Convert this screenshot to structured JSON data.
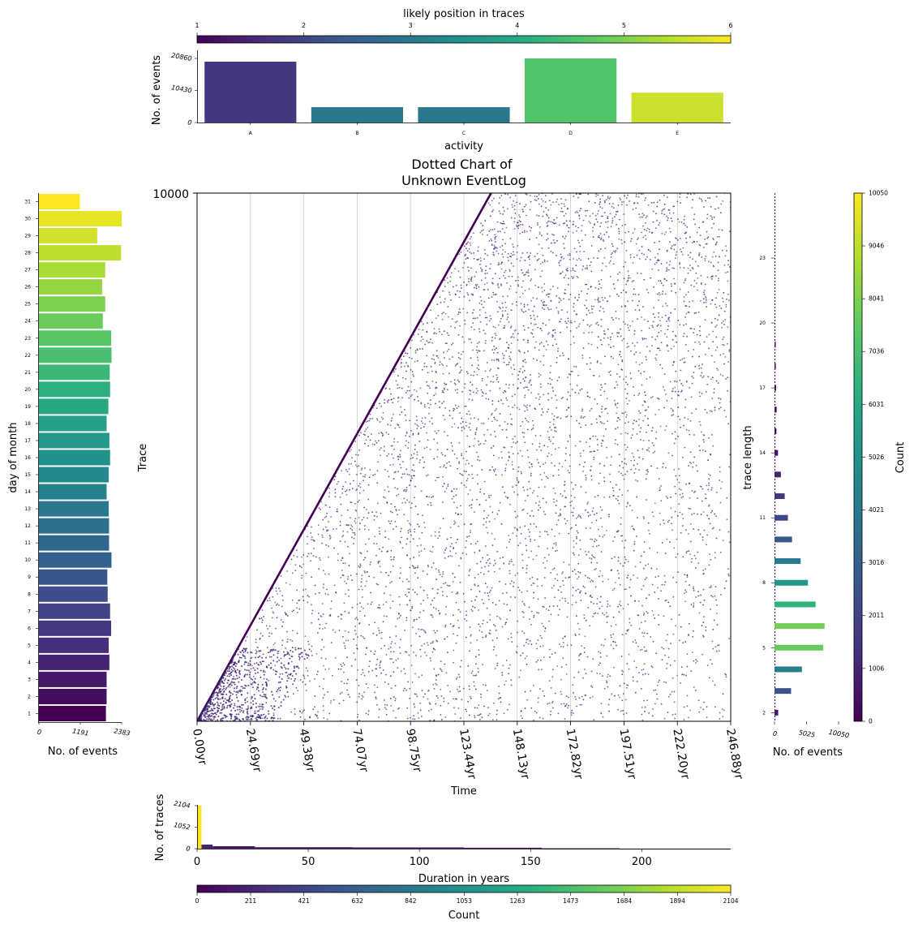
{
  "chart_data": [
    {
      "id": "activity-bars",
      "type": "bar",
      "categories": [
        "A",
        "B",
        "C",
        "D",
        "E"
      ],
      "values": [
        19800,
        5000,
        5000,
        20860,
        9700
      ],
      "ylim": [
        0,
        20860
      ],
      "yticks": [
        {
          "v": 0,
          "label": "0"
        },
        {
          "v": 10430,
          "label": "10430"
        },
        {
          "v": 20860,
          "label": "20860"
        }
      ],
      "xlabel": "activity",
      "ylabel": "No. of events",
      "likely_position": [
        1.8,
        3.0,
        3.0,
        4.6,
        5.6
      ],
      "colorbar": {
        "label": "likely position in traces",
        "range": [
          1,
          6
        ],
        "ticks": [
          "1",
          "2",
          "3",
          "4",
          "5",
          "6"
        ]
      }
    },
    {
      "id": "day-of-month",
      "type": "bar",
      "orientation": "horizontal",
      "categories": [
        "1",
        "2",
        "3",
        "4",
        "5",
        "6",
        "7",
        "8",
        "9",
        "10",
        "11",
        "12",
        "13",
        "14",
        "15",
        "16",
        "17",
        "18",
        "19",
        "20",
        "21",
        "22",
        "23",
        "24",
        "25",
        "26",
        "27",
        "28",
        "29",
        "30",
        "31"
      ],
      "values": [
        1930,
        1950,
        1950,
        2030,
        2010,
        2080,
        2050,
        1980,
        1970,
        2090,
        2020,
        2020,
        2010,
        1950,
        2010,
        2050,
        2030,
        1950,
        2000,
        2050,
        2040,
        2090,
        2080,
        1840,
        1910,
        1820,
        1910,
        2365,
        1680,
        2383,
        1180
      ],
      "xlim": [
        0,
        2383
      ],
      "xticks": [
        {
          "v": 0,
          "label": "0"
        },
        {
          "v": 1191,
          "label": "1191"
        },
        {
          "v": 2383,
          "label": "2383"
        }
      ],
      "xlabel": "No. of events",
      "ylabel": "day of month",
      "colormap": "viridis"
    },
    {
      "id": "dotted-chart",
      "type": "scatter",
      "title": "Dotted Chart of\nUnknown EventLog",
      "xlabel": "Time",
      "ylabel": "Trace",
      "xlim": [
        0,
        246.88
      ],
      "ylim": [
        0,
        10000
      ],
      "xticks": [
        "0.00yr",
        "24.69yr",
        "49.38yr",
        "74.07yr",
        "98.75yr",
        "123.44yr",
        "148.13yr",
        "172.82yr",
        "197.51yr",
        "222.20yr",
        "246.88yr"
      ],
      "yticks": [
        "10000"
      ],
      "description_points": "case start times rise linearly from 0yr at trace 0 to about 136yr at trace 10000; later events scatter to the right of the start diagonal",
      "start_line": [
        [
          0,
          0
        ],
        [
          136,
          10000
        ]
      ],
      "grid": "vertical"
    },
    {
      "id": "trace-length",
      "type": "bar",
      "orientation": "horizontal",
      "lengths": [
        2,
        3,
        4,
        5,
        6,
        7,
        8,
        9,
        10,
        11,
        12,
        13,
        14,
        15,
        16,
        17,
        18,
        19,
        20,
        21,
        22,
        23,
        24
      ],
      "values": [
        580,
        2600,
        4300,
        7650,
        7850,
        6450,
        5250,
        4100,
        2750,
        2100,
        1600,
        1000,
        550,
        300,
        330,
        250,
        200,
        150,
        0,
        0,
        0,
        0,
        0
      ],
      "xlim": [
        0,
        10050
      ],
      "xticks": [
        {
          "v": 0,
          "label": "0"
        },
        {
          "v": 5025,
          "label": "5025"
        },
        {
          "v": 10050,
          "label": "10050"
        }
      ],
      "yticks": [
        "2",
        "5",
        "8",
        "11",
        "14",
        "17",
        "20",
        "23"
      ],
      "ylim": [
        1.6,
        26
      ],
      "xlabel": "No. of events",
      "ylabel": "trace length",
      "colorbar": {
        "label": "Count",
        "range": [
          0,
          10050
        ],
        "ticks": [
          "0",
          "1006",
          "2011",
          "3016",
          "4021",
          "5026",
          "6031",
          "7036",
          "8041",
          "9046",
          "10050"
        ]
      }
    },
    {
      "id": "duration-histogram",
      "type": "bar",
      "x_label": "Duration in years",
      "ylabel": "No. of traces",
      "xlim": [
        0,
        240
      ],
      "ylim": [
        0,
        2104
      ],
      "xticks": [
        {
          "v": 0,
          "label": "0"
        },
        {
          "v": 50,
          "label": "50"
        },
        {
          "v": 100,
          "label": "100"
        },
        {
          "v": 150,
          "label": "150"
        },
        {
          "v": 200,
          "label": "200"
        }
      ],
      "yticks": [
        {
          "v": 0,
          "label": "0"
        },
        {
          "v": 1052,
          "label": "1052"
        },
        {
          "v": 2104,
          "label": "2104"
        }
      ],
      "bins": [
        {
          "x0": 0,
          "x1": 2,
          "count": 2104
        },
        {
          "x0": 2,
          "x1": 7,
          "count": 200
        },
        {
          "x0": 7,
          "x1": 26,
          "count": 120
        },
        {
          "x0": 26,
          "x1": 70,
          "count": 70
        },
        {
          "x0": 70,
          "x1": 120,
          "count": 60
        },
        {
          "x0": 120,
          "x1": 155,
          "count": 45
        },
        {
          "x0": 155,
          "x1": 190,
          "count": 20
        },
        {
          "x0": 190,
          "x1": 240,
          "count": 5
        }
      ],
      "colorbar": {
        "label": "Count",
        "range": [
          0,
          2104
        ],
        "ticks": [
          "0",
          "211",
          "421",
          "632",
          "842",
          "1053",
          "1263",
          "1473",
          "1684",
          "1894",
          "2104"
        ]
      }
    }
  ]
}
